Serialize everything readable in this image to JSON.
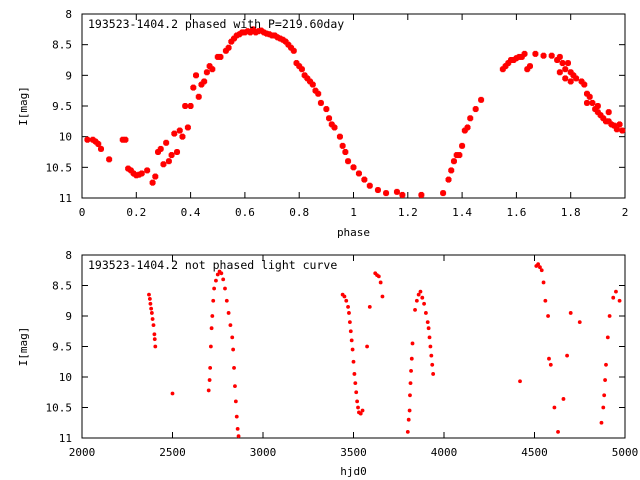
{
  "chart_data": [
    {
      "type": "scatter",
      "title": "193523-1404.2 phased with P=219.60day",
      "xlabel": "phase",
      "ylabel": "I[mag]",
      "xlim": [
        0,
        2
      ],
      "ylim": [
        11,
        8
      ],
      "y_inverted": true,
      "grid": false,
      "xticks": [
        0,
        0.2,
        0.4,
        0.6,
        0.8,
        1,
        1.2,
        1.4,
        1.6,
        1.8,
        2
      ],
      "yticks": [
        8,
        8.5,
        9,
        9.5,
        10,
        10.5,
        11
      ],
      "marker": "cross",
      "color": "#ff0000",
      "series": [
        {
          "points": [
            [
              0.02,
              10.05
            ],
            [
              0.04,
              10.05
            ],
            [
              0.05,
              10.08
            ],
            [
              0.06,
              10.12
            ],
            [
              0.07,
              10.2
            ],
            [
              0.1,
              10.37
            ],
            [
              0.15,
              10.05
            ],
            [
              0.16,
              10.05
            ],
            [
              0.17,
              10.52
            ],
            [
              0.18,
              10.55
            ],
            [
              0.19,
              10.6
            ],
            [
              0.2,
              10.63
            ],
            [
              0.21,
              10.62
            ],
            [
              0.22,
              10.6
            ],
            [
              0.24,
              10.55
            ],
            [
              0.26,
              10.75
            ],
            [
              0.27,
              10.65
            ],
            [
              0.28,
              10.25
            ],
            [
              0.29,
              10.2
            ],
            [
              0.3,
              10.45
            ],
            [
              0.31,
              10.1
            ],
            [
              0.32,
              10.4
            ],
            [
              0.33,
              10.3
            ],
            [
              0.34,
              9.95
            ],
            [
              0.35,
              10.25
            ],
            [
              0.36,
              9.9
            ],
            [
              0.37,
              10.0
            ],
            [
              0.38,
              9.5
            ],
            [
              0.39,
              9.85
            ],
            [
              0.4,
              9.5
            ],
            [
              0.41,
              9.2
            ],
            [
              0.42,
              9.0
            ],
            [
              0.43,
              9.35
            ],
            [
              0.44,
              9.15
            ],
            [
              0.45,
              9.1
            ],
            [
              0.46,
              8.95
            ],
            [
              0.47,
              8.85
            ],
            [
              0.48,
              8.9
            ],
            [
              0.5,
              8.7
            ],
            [
              0.51,
              8.7
            ],
            [
              0.53,
              8.6
            ],
            [
              0.54,
              8.55
            ],
            [
              0.55,
              8.45
            ],
            [
              0.56,
              8.4
            ],
            [
              0.57,
              8.35
            ],
            [
              0.58,
              8.33
            ],
            [
              0.59,
              8.3
            ],
            [
              0.6,
              8.3
            ],
            [
              0.61,
              8.28
            ],
            [
              0.62,
              8.3
            ],
            [
              0.63,
              8.25
            ],
            [
              0.64,
              8.3
            ],
            [
              0.65,
              8.28
            ],
            [
              0.66,
              8.27
            ],
            [
              0.67,
              8.3
            ],
            [
              0.68,
              8.32
            ],
            [
              0.69,
              8.33
            ],
            [
              0.7,
              8.35
            ],
            [
              0.71,
              8.35
            ],
            [
              0.72,
              8.38
            ],
            [
              0.73,
              8.4
            ],
            [
              0.74,
              8.42
            ],
            [
              0.75,
              8.45
            ],
            [
              0.76,
              8.5
            ],
            [
              0.77,
              8.55
            ],
            [
              0.78,
              8.6
            ],
            [
              0.79,
              8.8
            ],
            [
              0.8,
              8.85
            ],
            [
              0.81,
              8.9
            ],
            [
              0.82,
              9.0
            ],
            [
              0.83,
              9.05
            ],
            [
              0.84,
              9.1
            ],
            [
              0.85,
              9.15
            ],
            [
              0.86,
              9.25
            ],
            [
              0.87,
              9.3
            ],
            [
              0.88,
              9.45
            ],
            [
              0.9,
              9.55
            ],
            [
              0.91,
              9.7
            ],
            [
              0.92,
              9.8
            ],
            [
              0.93,
              9.85
            ],
            [
              0.95,
              10.0
            ],
            [
              0.96,
              10.15
            ],
            [
              0.97,
              10.25
            ],
            [
              0.98,
              10.4
            ],
            [
              1.0,
              10.5
            ],
            [
              1.02,
              10.6
            ],
            [
              1.04,
              10.7
            ],
            [
              1.06,
              10.8
            ],
            [
              1.09,
              10.87
            ],
            [
              1.12,
              10.92
            ],
            [
              1.16,
              10.9
            ],
            [
              1.18,
              10.95
            ],
            [
              1.25,
              10.95
            ],
            [
              1.33,
              10.92
            ],
            [
              1.35,
              10.7
            ],
            [
              1.36,
              10.55
            ],
            [
              1.37,
              10.4
            ],
            [
              1.38,
              10.3
            ],
            [
              1.39,
              10.3
            ],
            [
              1.4,
              10.15
            ],
            [
              1.41,
              9.9
            ],
            [
              1.42,
              9.85
            ],
            [
              1.43,
              9.7
            ],
            [
              1.45,
              9.55
            ],
            [
              1.47,
              9.4
            ],
            [
              1.55,
              8.9
            ],
            [
              1.56,
              8.85
            ],
            [
              1.57,
              8.8
            ],
            [
              1.58,
              8.75
            ],
            [
              1.59,
              8.75
            ],
            [
              1.6,
              8.72
            ],
            [
              1.61,
              8.7
            ],
            [
              1.62,
              8.7
            ],
            [
              1.63,
              8.65
            ],
            [
              1.64,
              8.9
            ],
            [
              1.65,
              8.85
            ],
            [
              1.67,
              8.65
            ],
            [
              1.7,
              8.68
            ],
            [
              1.73,
              8.68
            ],
            [
              1.75,
              8.75
            ],
            [
              1.76,
              8.7
            ],
            [
              1.77,
              8.8
            ],
            [
              1.78,
              8.9
            ],
            [
              1.79,
              8.8
            ],
            [
              1.8,
              8.95
            ],
            [
              1.81,
              9.0
            ],
            [
              1.82,
              9.05
            ],
            [
              1.84,
              9.1
            ],
            [
              1.85,
              9.15
            ],
            [
              1.86,
              9.3
            ],
            [
              1.87,
              9.35
            ],
            [
              1.88,
              9.45
            ],
            [
              1.89,
              9.55
            ],
            [
              1.9,
              9.6
            ],
            [
              1.91,
              9.65
            ],
            [
              1.92,
              9.7
            ],
            [
              1.93,
              9.75
            ],
            [
              1.94,
              9.75
            ],
            [
              1.95,
              9.8
            ],
            [
              1.96,
              9.82
            ],
            [
              1.97,
              9.88
            ],
            [
              1.98,
              9.8
            ],
            [
              1.99,
              9.9
            ],
            [
              1.76,
              8.95
            ],
            [
              1.78,
              9.05
            ],
            [
              1.8,
              9.1
            ],
            [
              1.86,
              9.45
            ],
            [
              1.9,
              9.5
            ],
            [
              1.94,
              9.6
            ]
          ]
        }
      ]
    },
    {
      "type": "scatter",
      "title": "193523-1404.2 not phased light curve",
      "xlabel": "hjd0",
      "ylabel": "I[mag]",
      "xlim": [
        2000,
        5000
      ],
      "ylim": [
        11,
        8
      ],
      "y_inverted": true,
      "grid": false,
      "xticks": [
        2000,
        2500,
        3000,
        3500,
        4000,
        4500,
        5000
      ],
      "yticks": [
        8,
        8.5,
        9,
        9.5,
        10,
        10.5,
        11
      ],
      "marker": "dot",
      "color": "#ff0000",
      "series": [
        {
          "points": [
            [
              2370,
              8.65
            ],
            [
              2375,
              8.72
            ],
            [
              2378,
              8.8
            ],
            [
              2382,
              8.88
            ],
            [
              2386,
              8.95
            ],
            [
              2390,
              9.05
            ],
            [
              2395,
              9.15
            ],
            [
              2400,
              9.3
            ],
            [
              2402,
              9.38
            ],
            [
              2405,
              9.5
            ],
            [
              2500,
              10.27
            ],
            [
              2700,
              10.22
            ],
            [
              2705,
              10.05
            ],
            [
              2708,
              9.85
            ],
            [
              2712,
              9.5
            ],
            [
              2716,
              9.2
            ],
            [
              2720,
              9.0
            ],
            [
              2725,
              8.75
            ],
            [
              2730,
              8.55
            ],
            [
              2740,
              8.42
            ],
            [
              2750,
              8.32
            ],
            [
              2760,
              8.27
            ],
            [
              2770,
              8.3
            ],
            [
              2780,
              8.4
            ],
            [
              2790,
              8.55
            ],
            [
              2800,
              8.75
            ],
            [
              2810,
              8.95
            ],
            [
              2820,
              9.15
            ],
            [
              2830,
              9.35
            ],
            [
              2835,
              9.55
            ],
            [
              2840,
              9.85
            ],
            [
              2845,
              10.15
            ],
            [
              2850,
              10.4
            ],
            [
              2855,
              10.65
            ],
            [
              2860,
              10.85
            ],
            [
              2865,
              10.97
            ],
            [
              3440,
              8.65
            ],
            [
              3450,
              8.68
            ],
            [
              3460,
              8.75
            ],
            [
              3470,
              8.85
            ],
            [
              3475,
              8.95
            ],
            [
              3480,
              9.1
            ],
            [
              3485,
              9.25
            ],
            [
              3490,
              9.4
            ],
            [
              3495,
              9.55
            ],
            [
              3500,
              9.75
            ],
            [
              3505,
              9.95
            ],
            [
              3510,
              10.1
            ],
            [
              3515,
              10.25
            ],
            [
              3520,
              10.4
            ],
            [
              3525,
              10.5
            ],
            [
              3530,
              10.58
            ],
            [
              3540,
              10.6
            ],
            [
              3550,
              10.55
            ],
            [
              3575,
              9.5
            ],
            [
              3590,
              8.85
            ],
            [
              3620,
              8.3
            ],
            [
              3630,
              8.33
            ],
            [
              3640,
              8.35
            ],
            [
              3650,
              8.45
            ],
            [
              3660,
              8.68
            ],
            [
              3800,
              10.9
            ],
            [
              3805,
              10.7
            ],
            [
              3810,
              10.55
            ],
            [
              3812,
              10.3
            ],
            [
              3815,
              10.1
            ],
            [
              3818,
              9.9
            ],
            [
              3822,
              9.7
            ],
            [
              3826,
              9.45
            ],
            [
              3840,
              8.9
            ],
            [
              3850,
              8.75
            ],
            [
              3860,
              8.65
            ],
            [
              3870,
              8.6
            ],
            [
              3880,
              8.7
            ],
            [
              3890,
              8.8
            ],
            [
              3900,
              8.95
            ],
            [
              3910,
              9.1
            ],
            [
              3915,
              9.2
            ],
            [
              3920,
              9.35
            ],
            [
              3925,
              9.5
            ],
            [
              3930,
              9.65
            ],
            [
              3935,
              9.8
            ],
            [
              3940,
              9.95
            ],
            [
              4420,
              10.07
            ],
            [
              4510,
              8.18
            ],
            [
              4520,
              8.15
            ],
            [
              4530,
              8.2
            ],
            [
              4540,
              8.25
            ],
            [
              4550,
              8.45
            ],
            [
              4560,
              8.75
            ],
            [
              4575,
              9.0
            ],
            [
              4580,
              9.7
            ],
            [
              4590,
              9.8
            ],
            [
              4610,
              10.5
            ],
            [
              4630,
              10.9
            ],
            [
              4660,
              10.36
            ],
            [
              4680,
              9.65
            ],
            [
              4700,
              8.95
            ],
            [
              4750,
              9.1
            ],
            [
              4870,
              10.75
            ],
            [
              4880,
              10.5
            ],
            [
              4885,
              10.3
            ],
            [
              4890,
              10.05
            ],
            [
              4895,
              9.8
            ],
            [
              4905,
              9.35
            ],
            [
              4915,
              9.0
            ],
            [
              4935,
              8.7
            ],
            [
              4950,
              8.6
            ],
            [
              4970,
              8.75
            ]
          ]
        }
      ]
    }
  ]
}
